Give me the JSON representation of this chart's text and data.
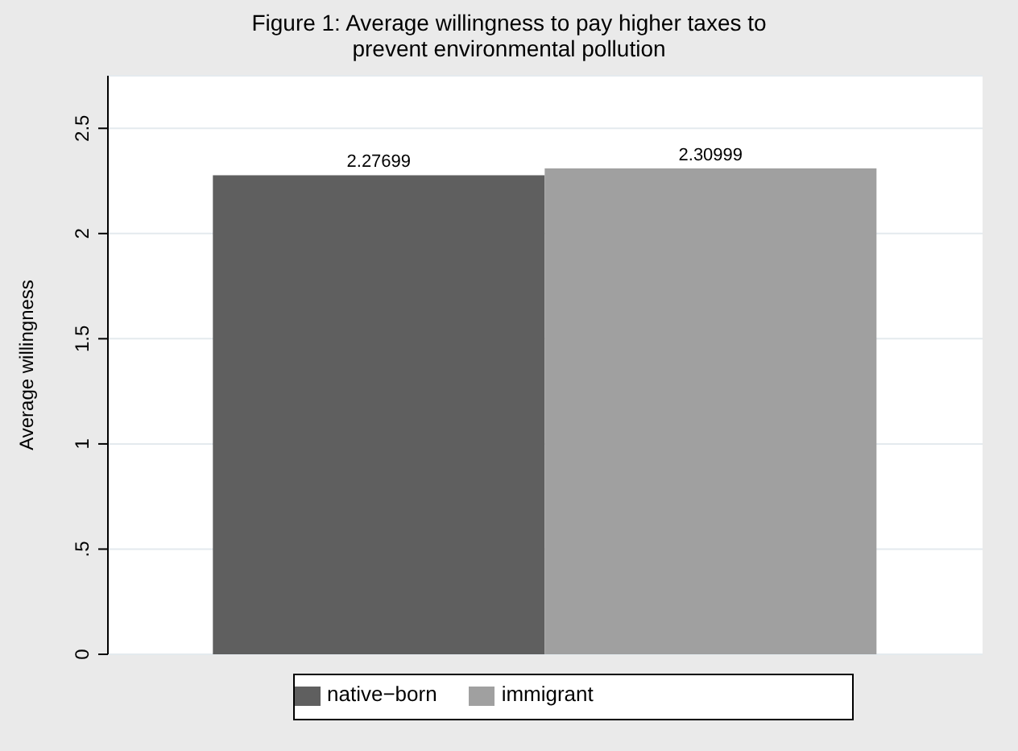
{
  "chart_data": {
    "type": "bar",
    "title": "Figure 1: Average willingness to pay higher taxes to prevent environmental pollution",
    "ylabel": "Average willingness",
    "categories": [
      null
    ],
    "series": [
      {
        "name": "native−born",
        "color": "#5f5f5f",
        "values": [
          2.27699
        ]
      },
      {
        "name": "immigrant",
        "color": "#a0a0a0",
        "values": [
          2.30999
        ]
      }
    ],
    "ylim": [
      0,
      2.75
    ],
    "yticks": [
      0,
      {
        "value": 0.5,
        "label": ".5"
      },
      1,
      1.5,
      2,
      2.5
    ],
    "grid": "y",
    "legend": "bottom",
    "data_labels": true
  }
}
